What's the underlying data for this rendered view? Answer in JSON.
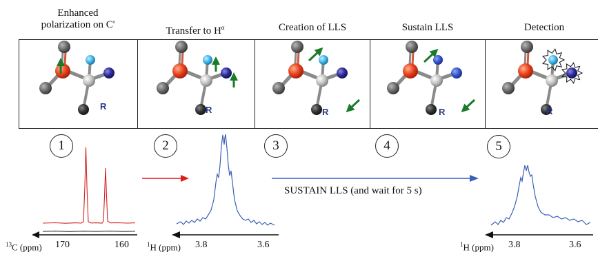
{
  "steps": [
    {
      "num": "1",
      "title_line1": "Enhanced",
      "title_line2": "polarization on C'"
    },
    {
      "num": "2",
      "title_prefix": "Transfer to H",
      "title_sup": "α"
    },
    {
      "num": "3",
      "title": "Creation of LLS"
    },
    {
      "num": "4",
      "title": "Sustain LLS"
    },
    {
      "num": "5",
      "title": "Detection"
    }
  ],
  "molecule_label": "R",
  "colors": {
    "carbonyl_c": "#e8401c",
    "alpha_c": "#b9b9b9",
    "h_alpha": "#3fb6ea",
    "nitrogen": "#2a2a9a",
    "oxygen": "#6b6b6b",
    "r_group": "#222222",
    "arrow_green": "#1a7a2a",
    "spectrum_c13": "#d42020",
    "spectrum_h1": "#3a5fb8",
    "transfer_arrow_red": "#e11b1b",
    "sustain_arrow_blue": "#3a5fb8"
  },
  "spectra": {
    "c13": {
      "unit_prefix": "13",
      "unit": "C (ppm)",
      "ticks": [
        "170",
        "160"
      ]
    },
    "h1_a": {
      "unit_prefix": "1",
      "unit": "H (ppm)",
      "ticks": [
        "3.8",
        "3.6"
      ]
    },
    "h1_b": {
      "unit_prefix": "1",
      "unit": "H (ppm)",
      "ticks": [
        "3.8",
        "3.6"
      ]
    }
  },
  "sustain_caption": "SUSTAIN LLS (and wait for 5 s)"
}
